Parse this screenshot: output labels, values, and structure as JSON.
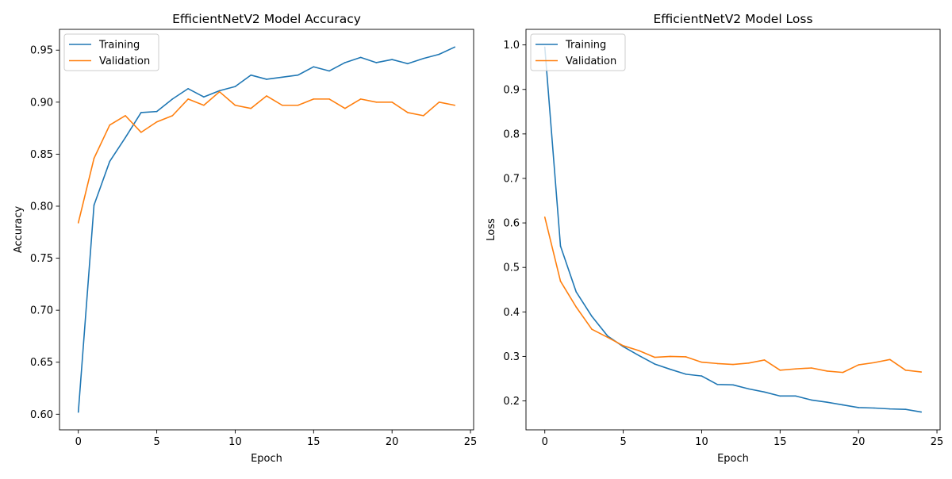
{
  "chart_data": [
    {
      "type": "line",
      "title": "EfficientNetV2 Model Accuracy",
      "xlabel": "Epoch",
      "ylabel": "Accuracy",
      "xlim": [
        -1.2,
        25.2
      ],
      "ylim": [
        0.585,
        0.97
      ],
      "xticks": [
        0,
        5,
        10,
        15,
        20,
        25
      ],
      "yticks": [
        0.6,
        0.65,
        0.7,
        0.75,
        0.8,
        0.85,
        0.9,
        0.95
      ],
      "ytick_labels": [
        "0.60",
        "0.65",
        "0.70",
        "0.75",
        "0.80",
        "0.85",
        "0.90",
        "0.95"
      ],
      "legend_position": "upper-left",
      "x": [
        0,
        1,
        2,
        3,
        4,
        5,
        6,
        7,
        8,
        9,
        10,
        11,
        12,
        13,
        14,
        15,
        16,
        17,
        18,
        19,
        20,
        21,
        22,
        23,
        24
      ],
      "series": [
        {
          "name": "Training",
          "color": "#1f77b4",
          "values": [
            0.602,
            0.801,
            0.843,
            0.866,
            0.89,
            0.891,
            0.903,
            0.913,
            0.905,
            0.911,
            0.915,
            0.926,
            0.922,
            0.924,
            0.926,
            0.934,
            0.93,
            0.938,
            0.943,
            0.938,
            0.941,
            0.937,
            0.942,
            0.946,
            0.953
          ]
        },
        {
          "name": "Validation",
          "color": "#ff7f0e",
          "values": [
            0.784,
            0.846,
            0.878,
            0.887,
            0.871,
            0.881,
            0.887,
            0.903,
            0.897,
            0.91,
            0.897,
            0.894,
            0.906,
            0.897,
            0.897,
            0.903,
            0.903,
            0.894,
            0.903,
            0.9,
            0.9,
            0.89,
            0.887,
            0.9,
            0.897
          ]
        }
      ]
    },
    {
      "type": "line",
      "title": "EfficientNetV2 Model Loss",
      "xlabel": "Epoch",
      "ylabel": "Loss",
      "xlim": [
        -1.2,
        25.2
      ],
      "ylim": [
        0.135,
        1.035
      ],
      "xticks": [
        0,
        5,
        10,
        15,
        20,
        25
      ],
      "yticks": [
        0.2,
        0.3,
        0.4,
        0.5,
        0.6,
        0.7,
        0.8,
        0.9,
        1.0
      ],
      "ytick_labels": [
        "0.2",
        "0.3",
        "0.4",
        "0.5",
        "0.6",
        "0.7",
        "0.8",
        "0.9",
        "1.0"
      ],
      "legend_position": "upper-left",
      "x": [
        0,
        1,
        2,
        3,
        4,
        5,
        6,
        7,
        8,
        9,
        10,
        11,
        12,
        13,
        14,
        15,
        16,
        17,
        18,
        19,
        20,
        21,
        22,
        23,
        24
      ],
      "series": [
        {
          "name": "Training",
          "color": "#1f77b4",
          "values": [
            0.995,
            0.548,
            0.445,
            0.39,
            0.346,
            0.322,
            0.302,
            0.283,
            0.271,
            0.26,
            0.256,
            0.237,
            0.236,
            0.227,
            0.22,
            0.211,
            0.211,
            0.202,
            0.197,
            0.191,
            0.185,
            0.184,
            0.182,
            0.181,
            0.175
          ]
        },
        {
          "name": "Validation",
          "color": "#ff7f0e",
          "values": [
            0.613,
            0.469,
            0.411,
            0.361,
            0.343,
            0.324,
            0.313,
            0.298,
            0.3,
            0.299,
            0.287,
            0.284,
            0.282,
            0.285,
            0.292,
            0.269,
            0.272,
            0.274,
            0.267,
            0.264,
            0.281,
            0.286,
            0.293,
            0.269,
            0.265
          ]
        }
      ]
    }
  ]
}
